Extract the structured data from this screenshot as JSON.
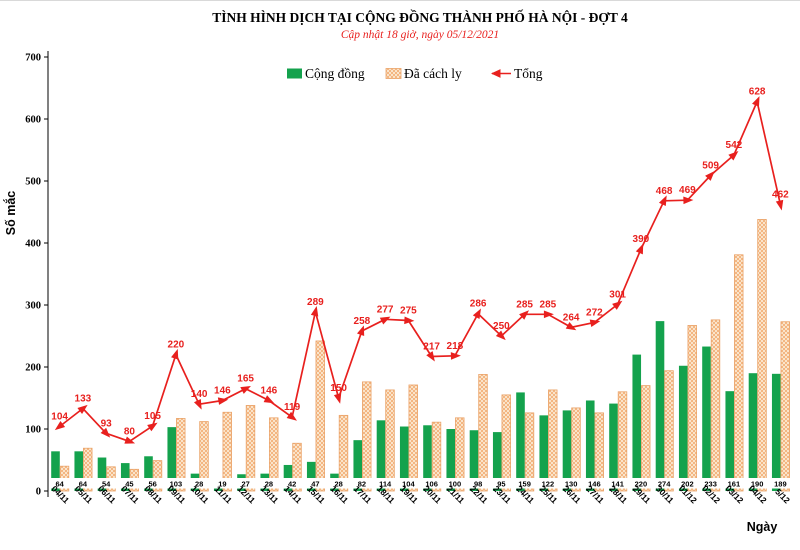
{
  "title": "TÌNH HÌNH DỊCH TẠI CỘNG ĐỒNG THÀNH PHỐ HÀ NỘI - ĐỢT 4",
  "subtitle": "Cập nhật 18 giờ, ngày 05/12/2021",
  "axes": {
    "y_label": "Số mắc",
    "x_label": "Ngày",
    "y_ticks": [
      0,
      100,
      200,
      300,
      400,
      500,
      600,
      700
    ],
    "y_max": 700
  },
  "legend": {
    "items": [
      {
        "label": "Cộng đồng",
        "swatch": "solid-green-square"
      },
      {
        "label": "Đã cách ly",
        "swatch": "hatched-orange-square"
      },
      {
        "label": "Tổng",
        "swatch": "red-line-arrow-marker"
      }
    ]
  },
  "colors": {
    "green": "#14a24d",
    "orange_fill": "#fdf2e0",
    "orange_hatch": "#f2ad74",
    "orange_border": "#eaa267",
    "red": "#e8201e",
    "text": "#000000",
    "background": "#ffffff"
  },
  "chart_data": {
    "type": "bar",
    "subtype": "grouped-bars-with-line-overlay",
    "title": "TÌNH HÌNH DỊCH TẠI CỘNG ĐỒNG THÀNH PHỐ HÀ NỘI - ĐỢT 4",
    "xlabel": "Ngày",
    "ylabel": "Số mắc",
    "ylim": [
      0,
      700
    ],
    "grid": false,
    "legend_position": "top",
    "categories": [
      "04/11",
      "05/11",
      "06/11",
      "07/11",
      "08/11",
      "09/11",
      "10/11",
      "11/11",
      "12/11",
      "13/11",
      "14/11",
      "15/11",
      "16/11",
      "17/11",
      "18/11",
      "19/11",
      "20/11",
      "21/11",
      "22/11",
      "23/11",
      "24/11",
      "25/11",
      "26/11",
      "27/11",
      "28/11",
      "29/11",
      "30/11",
      "01/12",
      "02/12",
      "03/12",
      "04/12",
      "5/12"
    ],
    "series": [
      {
        "name": "Cộng đồng",
        "type": "bar",
        "color": "#14a24d",
        "values": [
          64,
          64,
          54,
          45,
          56,
          103,
          28,
          19,
          27,
          28,
          42,
          47,
          28,
          82,
          114,
          104,
          106,
          100,
          98,
          95,
          159,
          122,
          130,
          146,
          141,
          220,
          274,
          202,
          233,
          161,
          190,
          189
        ],
        "value_labels": "shown in white boxes at bar base"
      },
      {
        "name": "Đã cách ly",
        "type": "bar",
        "color": "hatched-orange",
        "values": [
          40,
          69,
          39,
          35,
          49,
          117,
          112,
          127,
          138,
          118,
          77,
          242,
          122,
          176,
          163,
          171,
          111,
          118,
          188,
          155,
          126,
          163,
          134,
          126,
          160,
          170,
          194,
          267,
          276,
          381,
          438,
          273
        ],
        "value_labels": "none"
      },
      {
        "name": "Tổng",
        "type": "line",
        "color": "#e8201e",
        "marker": "triangle-arrowhead",
        "values": [
          104,
          133,
          93,
          80,
          105,
          220,
          140,
          146,
          165,
          146,
          119,
          289,
          150,
          258,
          277,
          275,
          217,
          218,
          286,
          250,
          285,
          285,
          264,
          272,
          301,
          390,
          468,
          469,
          509,
          542,
          628,
          462
        ],
        "value_labels": "red numbers above each marker"
      }
    ]
  }
}
